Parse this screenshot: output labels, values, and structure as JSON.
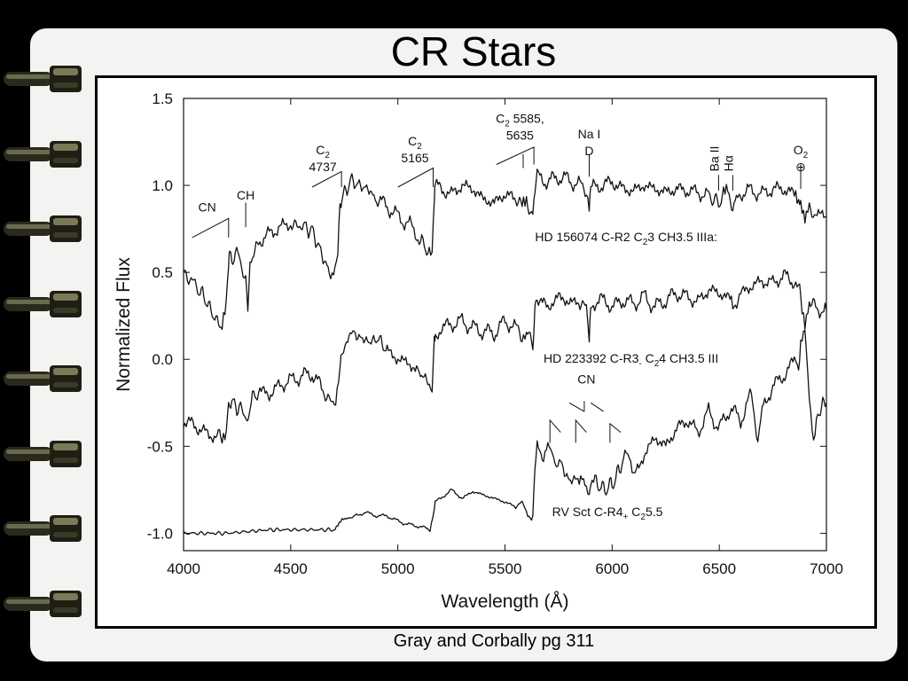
{
  "slide": {
    "title": "CR Stars",
    "caption": "Gray and Corbally pg 311",
    "ring_count": 8,
    "background_color": "#f3f3f1"
  },
  "chart_data": {
    "type": "line",
    "xlabel": "Wavelength (Å)",
    "ylabel": "Normalized Flux",
    "xlim": [
      4000,
      7000
    ],
    "ylim": [
      -1.1,
      1.5
    ],
    "x_ticks": [
      4000,
      4500,
      5000,
      5500,
      6000,
      6500,
      7000
    ],
    "y_ticks": [
      -1.0,
      -0.5,
      0.0,
      0.5,
      1.0,
      1.5
    ],
    "y_tick_labels": [
      "-1.0",
      "-0.5",
      "0.0",
      "0.5",
      "1.0",
      "1.5"
    ],
    "grid": false,
    "line_color": "#111111",
    "series": [
      {
        "label_parts": [
          "HD 156074  C-R2 C",
          "2",
          "3 CH3.5 IIIa:"
        ],
        "label_at": [
          5640,
          0.68
        ],
        "x": [
          4000,
          4060,
          4100,
          4140,
          4180,
          4200,
          4210,
          4215,
          4230,
          4260,
          4290,
          4300,
          4310,
          4350,
          4400,
          4450,
          4500,
          4560,
          4600,
          4640,
          4680,
          4700,
          4720,
          4730,
          4740,
          4780,
          4820,
          4860,
          4900,
          4950,
          5000,
          5050,
          5100,
          5140,
          5160,
          5170,
          5175,
          5200,
          5250,
          5300,
          5350,
          5400,
          5450,
          5500,
          5550,
          5580,
          5600,
          5630,
          5640,
          5650,
          5700,
          5750,
          5800,
          5850,
          5880,
          5893,
          5900,
          5950,
          6000,
          6050,
          6100,
          6150,
          6200,
          6250,
          6300,
          6350,
          6400,
          6450,
          6497,
          6520,
          6540,
          6563,
          6580,
          6600,
          6650,
          6700,
          6750,
          6800,
          6850,
          6870,
          6880,
          6900,
          6920,
          6950,
          7000
        ],
        "y": [
          0.5,
          0.42,
          0.35,
          0.25,
          0.18,
          0.3,
          0.55,
          0.62,
          0.58,
          0.6,
          0.45,
          0.32,
          0.55,
          0.68,
          0.72,
          0.76,
          0.78,
          0.76,
          0.74,
          0.62,
          0.5,
          0.52,
          0.62,
          0.88,
          0.92,
          1.03,
          1.0,
          0.98,
          0.92,
          0.88,
          0.82,
          0.78,
          0.7,
          0.62,
          0.58,
          0.92,
          1.0,
          0.98,
          0.95,
          1.0,
          0.98,
          0.92,
          0.9,
          0.95,
          0.92,
          0.88,
          0.9,
          0.84,
          0.98,
          1.05,
          1.02,
          1.05,
          1.03,
          1.0,
          0.98,
          0.86,
          0.98,
          1.0,
          1.02,
          0.98,
          0.97,
          1.0,
          0.98,
          0.96,
          0.98,
          0.97,
          0.96,
          0.94,
          0.9,
          0.94,
          0.96,
          0.86,
          0.94,
          0.96,
          0.97,
          0.95,
          0.98,
          0.98,
          0.95,
          0.9,
          0.88,
          0.78,
          0.86,
          0.84,
          0.82
        ]
      },
      {
        "label_parts": [
          "HD 223392  C-R3",
          "-",
          " C",
          "2",
          "4 CH3.5 III"
        ],
        "label_at": [
          5680,
          -0.02
        ],
        "x": [
          4000,
          4050,
          4100,
          4150,
          4180,
          4200,
          4210,
          4220,
          4260,
          4290,
          4300,
          4310,
          4350,
          4400,
          4450,
          4500,
          4550,
          4600,
          4650,
          4680,
          4710,
          4730,
          4740,
          4760,
          4790,
          4830,
          4870,
          4910,
          4950,
          5000,
          5050,
          5100,
          5140,
          5160,
          5170,
          5175,
          5200,
          5250,
          5300,
          5350,
          5400,
          5450,
          5500,
          5550,
          5580,
          5600,
          5630,
          5640,
          5650,
          5700,
          5750,
          5800,
          5850,
          5880,
          5893,
          5900,
          5950,
          6000,
          6050,
          6100,
          6150,
          6200,
          6250,
          6300,
          6350,
          6400,
          6450,
          6500,
          6550,
          6563,
          6600,
          6650,
          6700,
          6750,
          6800,
          6850,
          6870,
          6880,
          6900,
          6920,
          6950,
          7000
        ],
        "y": [
          -0.35,
          -0.38,
          -0.42,
          -0.45,
          -0.44,
          -0.4,
          -0.3,
          -0.25,
          -0.28,
          -0.32,
          -0.38,
          -0.25,
          -0.18,
          -0.2,
          -0.15,
          -0.12,
          -0.1,
          -0.08,
          -0.18,
          -0.25,
          -0.22,
          -0.05,
          0.02,
          0.12,
          0.15,
          0.12,
          0.1,
          0.12,
          0.05,
          0.0,
          -0.02,
          -0.08,
          -0.12,
          -0.16,
          0.08,
          0.12,
          0.18,
          0.2,
          0.22,
          0.18,
          0.16,
          0.15,
          0.22,
          0.18,
          0.14,
          0.15,
          0.1,
          0.3,
          0.35,
          0.3,
          0.36,
          0.33,
          0.32,
          0.3,
          0.1,
          0.3,
          0.35,
          0.3,
          0.34,
          0.32,
          0.36,
          0.3,
          0.34,
          0.38,
          0.36,
          0.33,
          0.4,
          0.38,
          0.35,
          0.3,
          0.38,
          0.42,
          0.45,
          0.44,
          0.48,
          0.45,
          0.42,
          0.35,
          0.22,
          0.35,
          0.3,
          0.28
        ]
      },
      {
        "label_parts": [
          "RV Sct  C-R4",
          "+",
          " C",
          "2",
          "5.5"
        ],
        "label_at": [
          5720,
          -0.9
        ],
        "x": [
          4000,
          4100,
          4200,
          4300,
          4400,
          4500,
          4600,
          4700,
          4720,
          4740,
          4760,
          4800,
          4850,
          4900,
          4950,
          5000,
          5050,
          5100,
          5150,
          5170,
          5175,
          5200,
          5250,
          5300,
          5350,
          5400,
          5450,
          5500,
          5550,
          5580,
          5600,
          5630,
          5640,
          5650,
          5680,
          5700,
          5720,
          5740,
          5760,
          5800,
          5840,
          5860,
          5880,
          5893,
          5900,
          5920,
          5960,
          6000,
          6040,
          6060,
          6080,
          6100,
          6150,
          6200,
          6250,
          6300,
          6350,
          6400,
          6450,
          6500,
          6550,
          6600,
          6650,
          6680,
          6700,
          6750,
          6800,
          6850,
          6870,
          6880,
          6900,
          6920,
          6940,
          6960,
          7000
        ],
        "y": [
          -1.0,
          -1.0,
          -1.0,
          -0.99,
          -0.98,
          -0.98,
          -0.98,
          -0.98,
          -0.95,
          -0.92,
          -0.92,
          -0.9,
          -0.88,
          -0.9,
          -0.9,
          -0.93,
          -0.95,
          -0.96,
          -0.98,
          -0.86,
          -0.82,
          -0.8,
          -0.75,
          -0.8,
          -0.76,
          -0.78,
          -0.8,
          -0.82,
          -0.85,
          -0.82,
          -0.88,
          -0.9,
          -0.58,
          -0.5,
          -0.55,
          -0.48,
          -0.55,
          -0.65,
          -0.6,
          -0.7,
          -0.68,
          -0.65,
          -0.72,
          -0.8,
          -0.72,
          -0.7,
          -0.75,
          -0.72,
          -0.62,
          -0.5,
          -0.55,
          -0.68,
          -0.55,
          -0.45,
          -0.5,
          -0.4,
          -0.35,
          -0.42,
          -0.3,
          -0.4,
          -0.28,
          -0.35,
          -0.2,
          -0.48,
          -0.3,
          -0.15,
          -0.1,
          0.0,
          -0.05,
          0.08,
          0.15,
          -0.25,
          -0.5,
          -0.3,
          -0.25
        ]
      }
    ],
    "annotations": [
      {
        "lines": [
          [
            "CN"
          ]
        ],
        "at": [
          4110,
          0.85
        ]
      },
      {
        "lines": [
          [
            "CH"
          ]
        ],
        "at": [
          4290,
          0.92
        ]
      },
      {
        "lines": [
          [
            "C",
            "2",
            ""
          ],
          [
            "4737"
          ]
        ],
        "at": [
          4650,
          1.18
        ]
      },
      {
        "lines": [
          [
            "C",
            "2",
            ""
          ],
          [
            "5165"
          ]
        ],
        "at": [
          5080,
          1.23
        ]
      },
      {
        "lines": [
          [
            "C",
            "2",
            " 5585,"
          ],
          [
            "5635"
          ]
        ],
        "at": [
          5570,
          1.36
        ]
      },
      {
        "lines": [
          [
            "Na I"
          ],
          [
            "D"
          ]
        ],
        "at": [
          5893,
          1.27
        ]
      },
      {
        "lines": [
          [
            "O",
            "2",
            ""
          ],
          [
            "⊕"
          ]
        ],
        "at": [
          6880,
          1.18
        ]
      },
      {
        "lines": [
          [
            "CN"
          ]
        ],
        "at": [
          5880,
          -0.14
        ]
      }
    ],
    "vertical_labels": [
      {
        "text": "Ba II",
        "at": [
          6497,
          1.08
        ]
      },
      {
        "text": "Hα",
        "at": [
          6563,
          1.08
        ]
      }
    ]
  }
}
